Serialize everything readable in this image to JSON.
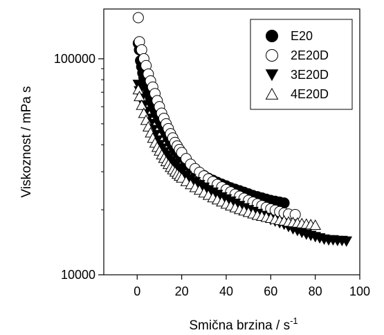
{
  "chart_data": {
    "type": "scatter",
    "xlabel_main": "Smična brzina / s",
    "xlabel_sup": "-1",
    "ylabel": "Viskoznost / mPa s",
    "y_scale": "log",
    "xlim": [
      -15,
      100
    ],
    "ylim": [
      10000,
      170000
    ],
    "x_ticks": [
      0,
      20,
      40,
      60,
      80,
      100
    ],
    "y_ticks": [
      10000,
      100000
    ],
    "x_tick_labels": [
      "0",
      "20",
      "40",
      "60",
      "80",
      "100"
    ],
    "y_tick_labels": [
      "10000",
      "100000"
    ],
    "grid": false,
    "legend_position": "top-right",
    "series": [
      {
        "name": "E20",
        "marker": "filled-circle",
        "color": "#000000",
        "points": [
          [
            0.5,
            118000
          ],
          [
            1,
            110000
          ],
          [
            1.5,
            98000
          ],
          [
            2,
            92000
          ],
          [
            2.5,
            86000
          ],
          [
            3,
            82000
          ],
          [
            3.5,
            79000
          ],
          [
            4,
            75000
          ],
          [
            5,
            70000
          ],
          [
            6,
            66000
          ],
          [
            7,
            62000
          ],
          [
            8,
            58000
          ],
          [
            9,
            55000
          ],
          [
            10,
            52000
          ],
          [
            11,
            49500
          ],
          [
            12,
            47000
          ],
          [
            13,
            45000
          ],
          [
            14,
            43000
          ],
          [
            15,
            41000
          ],
          [
            16,
            39500
          ],
          [
            17,
            38000
          ],
          [
            18,
            37000
          ],
          [
            19,
            36000
          ],
          [
            20,
            35000
          ],
          [
            22,
            33000
          ],
          [
            24,
            31500
          ],
          [
            26,
            30500
          ],
          [
            28,
            29500
          ],
          [
            30,
            28800
          ],
          [
            32,
            28000
          ],
          [
            34,
            27400
          ],
          [
            36,
            26800
          ],
          [
            38,
            26300
          ],
          [
            40,
            25800
          ],
          [
            42,
            25300
          ],
          [
            44,
            24900
          ],
          [
            46,
            24500
          ],
          [
            48,
            24100
          ],
          [
            50,
            23700
          ],
          [
            52,
            23300
          ],
          [
            54,
            23000
          ],
          [
            56,
            22700
          ],
          [
            58,
            22400
          ],
          [
            60,
            22100
          ],
          [
            62,
            21900
          ],
          [
            64,
            21700
          ],
          [
            66,
            21500
          ]
        ]
      },
      {
        "name": "2E20D",
        "marker": "open-circle",
        "color": "#000000",
        "points": [
          [
            0.5,
            155000
          ],
          [
            1,
            120000
          ],
          [
            2,
            110000
          ],
          [
            3,
            100000
          ],
          [
            4,
            93000
          ],
          [
            5,
            85000
          ],
          [
            6,
            79000
          ],
          [
            7,
            74000
          ],
          [
            8,
            69000
          ],
          [
            9,
            64000
          ],
          [
            10,
            60000
          ],
          [
            11,
            56000
          ],
          [
            12,
            53000
          ],
          [
            13,
            50000
          ],
          [
            14,
            47500
          ],
          [
            15,
            45000
          ],
          [
            16,
            43000
          ],
          [
            17,
            41000
          ],
          [
            18,
            39500
          ],
          [
            19,
            38000
          ],
          [
            20,
            36800
          ],
          [
            22,
            34500
          ],
          [
            24,
            32500
          ],
          [
            26,
            31000
          ],
          [
            28,
            29800
          ],
          [
            30,
            28700
          ],
          [
            32,
            27800
          ],
          [
            34,
            27000
          ],
          [
            36,
            26200
          ],
          [
            38,
            25500
          ],
          [
            40,
            24800
          ],
          [
            42,
            24200
          ],
          [
            44,
            23600
          ],
          [
            46,
            23100
          ],
          [
            48,
            22600
          ],
          [
            50,
            22100
          ],
          [
            52,
            21700
          ],
          [
            54,
            21300
          ],
          [
            56,
            20900
          ],
          [
            58,
            20500
          ],
          [
            60,
            20200
          ],
          [
            62,
            19900
          ],
          [
            64,
            19600
          ],
          [
            66,
            19300
          ],
          [
            68,
            19100
          ],
          [
            71,
            19000
          ]
        ]
      },
      {
        "name": "3E20D",
        "marker": "filled-triangle-down",
        "color": "#000000",
        "points": [
          [
            0.5,
            76000
          ],
          [
            1,
            71000
          ],
          [
            2,
            66000
          ],
          [
            3,
            61000
          ],
          [
            4,
            57000
          ],
          [
            5,
            53000
          ],
          [
            6,
            50000
          ],
          [
            7,
            47000
          ],
          [
            8,
            44500
          ],
          [
            9,
            42000
          ],
          [
            10,
            40000
          ],
          [
            11,
            38500
          ],
          [
            12,
            37000
          ],
          [
            13,
            35800
          ],
          [
            14,
            34700
          ],
          [
            15,
            33700
          ],
          [
            16,
            32800
          ],
          [
            17,
            32000
          ],
          [
            18,
            31200
          ],
          [
            19,
            30500
          ],
          [
            20,
            29900
          ],
          [
            22,
            28800
          ],
          [
            24,
            27800
          ],
          [
            26,
            26900
          ],
          [
            28,
            26100
          ],
          [
            30,
            25400
          ],
          [
            32,
            24700
          ],
          [
            34,
            24100
          ],
          [
            36,
            23500
          ],
          [
            38,
            22900
          ],
          [
            40,
            22400
          ],
          [
            42,
            21900
          ],
          [
            44,
            21400
          ],
          [
            46,
            20900
          ],
          [
            48,
            20400
          ],
          [
            50,
            20000
          ],
          [
            52,
            19600
          ],
          [
            54,
            19200
          ],
          [
            56,
            18800
          ],
          [
            58,
            18400
          ],
          [
            60,
            18000
          ],
          [
            62,
            17700
          ],
          [
            64,
            17400
          ],
          [
            66,
            17100
          ],
          [
            68,
            16700
          ],
          [
            70,
            16300
          ],
          [
            72,
            16000
          ],
          [
            74,
            15700
          ],
          [
            76,
            15400
          ],
          [
            78,
            15200
          ],
          [
            80,
            15000
          ],
          [
            82,
            14800
          ],
          [
            84,
            14600
          ],
          [
            86,
            14500
          ],
          [
            88,
            14500
          ],
          [
            90,
            14400
          ],
          [
            92,
            14400
          ],
          [
            94,
            14300
          ]
        ]
      },
      {
        "name": "4E20D",
        "marker": "open-triangle-up",
        "color": "#000000",
        "points": [
          [
            0.5,
            72000
          ],
          [
            1,
            67000
          ],
          [
            2,
            61000
          ],
          [
            3,
            56000
          ],
          [
            4,
            52000
          ],
          [
            5,
            48500
          ],
          [
            6,
            45500
          ],
          [
            7,
            43000
          ],
          [
            8,
            40800
          ],
          [
            9,
            39000
          ],
          [
            10,
            37500
          ],
          [
            11,
            36000
          ],
          [
            12,
            34700
          ],
          [
            13,
            33500
          ],
          [
            14,
            32500
          ],
          [
            15,
            31500
          ],
          [
            16,
            30700
          ],
          [
            17,
            30000
          ],
          [
            18,
            29300
          ],
          [
            19,
            28700
          ],
          [
            20,
            28100
          ],
          [
            22,
            27100
          ],
          [
            24,
            26200
          ],
          [
            26,
            25400
          ],
          [
            28,
            24700
          ],
          [
            30,
            24000
          ],
          [
            32,
            23400
          ],
          [
            34,
            22800
          ],
          [
            36,
            22300
          ],
          [
            38,
            21800
          ],
          [
            40,
            21300
          ],
          [
            42,
            20900
          ],
          [
            44,
            20500
          ],
          [
            46,
            20100
          ],
          [
            48,
            19800
          ],
          [
            50,
            19500
          ],
          [
            52,
            19200
          ],
          [
            54,
            18900
          ],
          [
            56,
            18700
          ],
          [
            58,
            18500
          ],
          [
            60,
            18300
          ],
          [
            62,
            18100
          ],
          [
            64,
            17900
          ],
          [
            66,
            17800
          ],
          [
            68,
            17600
          ],
          [
            70,
            17500
          ],
          [
            72,
            17400
          ],
          [
            74,
            17300
          ],
          [
            76,
            17200
          ],
          [
            78,
            17100
          ],
          [
            80,
            17000
          ]
        ]
      }
    ]
  }
}
